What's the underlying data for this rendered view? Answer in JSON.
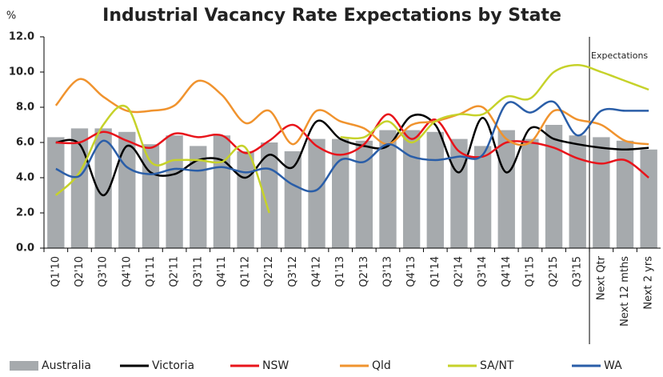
{
  "chart_data": {
    "type": "bar_line",
    "title": "Industrial Vacancy Rate Expectations by State",
    "y_unit_label": "%",
    "annotation": "Expectations",
    "categories": [
      "Q1'10",
      "Q2'10",
      "Q3'10",
      "Q4'10",
      "Q1'11",
      "Q2'11",
      "Q3'11",
      "Q4'11",
      "Q1'12",
      "Q2'12",
      "Q3'12",
      "Q4'12",
      "Q1'13",
      "Q2'13",
      "Q3'13",
      "Q4'13",
      "Q1'14",
      "Q2'14",
      "Q3'14",
      "Q4'14",
      "Q1'15",
      "Q2'15",
      "Q3'15",
      "Next Qtr",
      "Next 12 mths",
      "Next 2 yrs"
    ],
    "ylim": [
      0,
      12
    ],
    "yticks": [
      {
        "value": 0,
        "label": "0.0"
      },
      {
        "value": 2,
        "label": "2.0"
      },
      {
        "value": 4,
        "label": "4.0"
      },
      {
        "value": 6,
        "label": "6.0"
      },
      {
        "value": 8,
        "label": "8.0"
      },
      {
        "value": 10,
        "label": "10.0"
      },
      {
        "value": 12,
        "label": "12.0"
      }
    ],
    "grid": false,
    "legend": "bottom",
    "series": [
      {
        "name": "Australia",
        "type": "bar",
        "color": "#a6aaad",
        "values": [
          6.3,
          6.8,
          6.8,
          6.6,
          5.9,
          6.4,
          5.8,
          6.4,
          5.5,
          6.0,
          5.5,
          6.2,
          6.2,
          6.1,
          6.7,
          6.7,
          6.6,
          6.2,
          5.8,
          6.7,
          6.2,
          7.0,
          6.4,
          6.3,
          6.1,
          5.6
        ]
      },
      {
        "name": "Victoria",
        "type": "line",
        "color": "#000000",
        "values": [
          6.0,
          5.9,
          3.0,
          5.8,
          4.3,
          4.2,
          5.0,
          5.0,
          4.0,
          5.3,
          4.6,
          7.2,
          6.2,
          5.8,
          5.8,
          7.5,
          7.0,
          4.3,
          7.4,
          4.3,
          6.8,
          6.2,
          5.9,
          5.7,
          5.6,
          5.7
        ]
      },
      {
        "name": "NSW",
        "type": "line",
        "color": "#e8141b",
        "values": [
          6.0,
          6.0,
          6.6,
          6.1,
          5.7,
          6.5,
          6.3,
          6.4,
          5.4,
          6.1,
          7.0,
          5.8,
          5.3,
          5.9,
          7.6,
          6.2,
          7.3,
          5.5,
          5.2,
          6.0,
          6.0,
          5.7,
          5.1,
          4.8,
          5.0,
          4.0
        ]
      },
      {
        "name": "Qld",
        "type": "line",
        "color": "#f0932e",
        "values": [
          8.1,
          9.6,
          8.6,
          7.8,
          7.8,
          8.1,
          9.5,
          8.7,
          7.1,
          7.8,
          5.9,
          7.8,
          7.2,
          6.8,
          5.9,
          7.0,
          7.2,
          7.6,
          8.0,
          6.2,
          6.0,
          7.8,
          7.3,
          7.0,
          6.1,
          5.9
        ]
      },
      {
        "name": "SA/NT",
        "type": "line",
        "color": "#c6d22a",
        "values": [
          3.0,
          4.3,
          7.0,
          8.0,
          4.9,
          5.0,
          5.0,
          4.9,
          5.7,
          2.0,
          null,
          null,
          6.3,
          6.3,
          7.2,
          6.0,
          7.2,
          7.6,
          7.6,
          8.6,
          8.5,
          10.0,
          10.4,
          10.0,
          9.5,
          9.0
        ]
      },
      {
        "name": "WA",
        "type": "line",
        "color": "#2a5ea8",
        "values": [
          4.5,
          4.1,
          6.1,
          4.6,
          4.2,
          4.5,
          4.4,
          4.6,
          4.3,
          4.5,
          3.6,
          3.3,
          5.0,
          4.9,
          5.9,
          5.2,
          5.0,
          5.2,
          5.3,
          8.2,
          7.7,
          8.3,
          6.4,
          7.8,
          7.8,
          7.8
        ]
      }
    ]
  }
}
